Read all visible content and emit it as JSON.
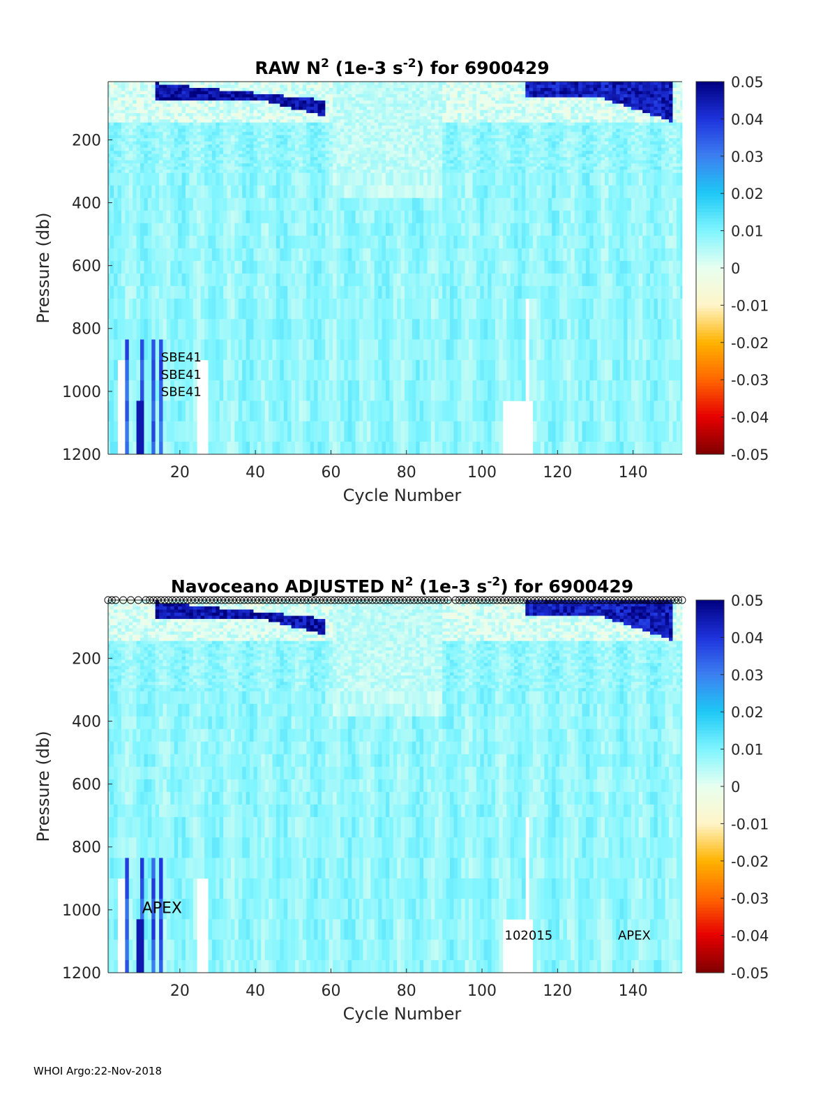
{
  "chart_data": [
    {
      "type": "heatmap",
      "id": "raw",
      "title_prefix": "RAW N",
      "title_sup1": "2",
      "title_mid": " (1e-3 s",
      "title_sup2": "-2",
      "title_suffix": ") for 6900429",
      "xlabel": "Cycle Number",
      "ylabel": "Pressure (db)",
      "xlim": [
        1,
        153
      ],
      "ylim": [
        15,
        1200
      ],
      "xticks": [
        "20",
        "40",
        "60",
        "80",
        "100",
        "120",
        "140"
      ],
      "xtick_values": [
        20,
        40,
        60,
        80,
        100,
        120,
        140
      ],
      "yticks": [
        "200",
        "400",
        "600",
        "800",
        "1000",
        "1200"
      ],
      "ytick_values": [
        200,
        400,
        600,
        800,
        1000,
        1200
      ],
      "colorbar": {
        "clim": [
          -0.05,
          0.05
        ],
        "ticks": [
          "0.05",
          "0.04",
          "0.03",
          "0.02",
          "0.01",
          "0",
          "-0.01",
          "-0.02",
          "-0.03",
          "-0.04",
          "-0.05"
        ],
        "colormap": [
          "#7f0000",
          "#e60000",
          "#ff6600",
          "#ffb300",
          "#fff5c8",
          "#e8fff0",
          "#7ff5ff",
          "#1ec8f5",
          "#3c7ff0",
          "#1e32dc",
          "#00007f"
        ]
      },
      "annotations": [
        {
          "text": "SBE41",
          "cycle": 15,
          "pressure": 905,
          "size": "small"
        },
        {
          "text": "SBE41",
          "cycle": 15,
          "pressure": 960,
          "size": "small"
        },
        {
          "text": "SBE41",
          "cycle": 15,
          "pressure": 1015,
          "size": "small"
        }
      ],
      "qc_markers": false
    },
    {
      "type": "heatmap",
      "id": "adjusted",
      "title_prefix": "Navoceano  ADJUSTED N",
      "title_sup1": "2",
      "title_mid": " (1e-3 s",
      "title_sup2": "-2",
      "title_suffix": ") for 6900429",
      "xlabel": "Cycle Number",
      "ylabel": "Pressure (db)",
      "xlim": [
        1,
        153
      ],
      "ylim": [
        15,
        1200
      ],
      "xticks": [
        "20",
        "40",
        "60",
        "80",
        "100",
        "120",
        "140"
      ],
      "xtick_values": [
        20,
        40,
        60,
        80,
        100,
        120,
        140
      ],
      "yticks": [
        "200",
        "400",
        "600",
        "800",
        "1000",
        "1200"
      ],
      "ytick_values": [
        200,
        400,
        600,
        800,
        1000,
        1200
      ],
      "colorbar": {
        "clim": [
          -0.05,
          0.05
        ],
        "ticks": [
          "0.05",
          "0.04",
          "0.03",
          "0.02",
          "0.01",
          "0",
          "-0.01",
          "-0.02",
          "-0.03",
          "-0.04",
          "-0.05"
        ],
        "colormap": [
          "#7f0000",
          "#e60000",
          "#ff6600",
          "#ffb300",
          "#fff5c8",
          "#e8fff0",
          "#7ff5ff",
          "#1ec8f5",
          "#3c7ff0",
          "#1e32dc",
          "#00007f"
        ]
      },
      "annotations": [
        {
          "text": "APEX",
          "cycle": 10,
          "pressure": 1010,
          "size": "large"
        },
        {
          "text": "102015",
          "cycle": 106,
          "pressure": 1095,
          "size": "small"
        },
        {
          "text": "APEX",
          "cycle": 136,
          "pressure": 1095,
          "size": "small"
        }
      ],
      "qc_markers": true,
      "qc_marker_symbol": "o",
      "qc_marker_gaps": [
        3,
        4,
        5,
        6,
        7,
        8,
        9,
        10,
        92
      ]
    }
  ],
  "footer": "WHOI Argo:22-Nov-2018"
}
